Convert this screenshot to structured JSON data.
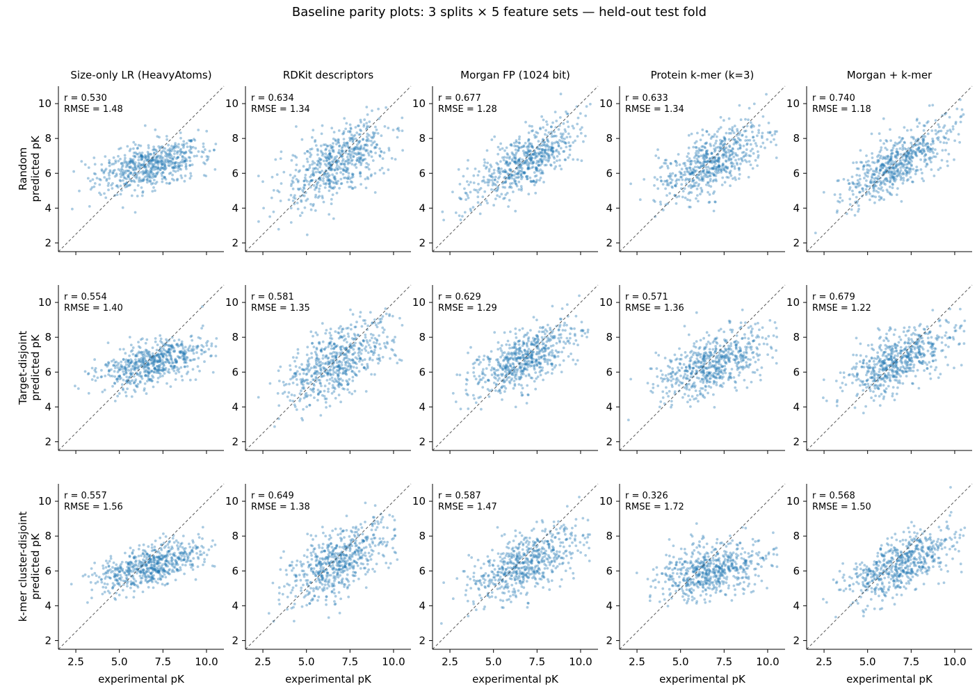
{
  "figure": {
    "title": "Baseline parity plots: 3 splits × 5 feature sets — held-out test fold"
  },
  "chart_data": {
    "type": "scatter",
    "layout": "grid",
    "rows": [
      "Random",
      "Target-disjoint",
      "k-mer cluster-disjoint"
    ],
    "columns": [
      "Size-only LR (HeavyAtoms)",
      "RDKit descriptors",
      "Morgan FP (1024 bit)",
      "Protein k-mer (k=3)",
      "Morgan + k-mer"
    ],
    "ylabel_suffix": "predicted pK",
    "xlabel": "experimental pK",
    "xlim": [
      1.5,
      11.0
    ],
    "ylim": [
      1.5,
      11.0
    ],
    "xticks": [
      2.5,
      5.0,
      7.5,
      10.0
    ],
    "yticks": [
      2,
      4,
      6,
      8,
      10
    ],
    "xtick_labels": [
      "2.5",
      "5.0",
      "7.5",
      "10.0"
    ],
    "ytick_labels": [
      "2",
      "4",
      "6",
      "8",
      "10"
    ],
    "identity_line": true,
    "marker_color": "#1f77b4",
    "line_color": "#555555",
    "points_per_panel": 600,
    "panels": [
      [
        {
          "r": "r = 0.530",
          "rmse": "RMSE = 1.48",
          "slope": 0.22,
          "intercept": 4.95,
          "noise": 0.62
        },
        {
          "r": "r = 0.634",
          "rmse": "RMSE = 1.34",
          "slope": 0.52,
          "intercept": 3.05,
          "noise": 0.95
        },
        {
          "r": "r = 0.677",
          "rmse": "RMSE = 1.28",
          "slope": 0.52,
          "intercept": 3.15,
          "noise": 0.82
        },
        {
          "r": "r = 0.633",
          "rmse": "RMSE = 1.34",
          "slope": 0.45,
          "intercept": 3.6,
          "noise": 0.85
        },
        {
          "r": "r = 0.740",
          "rmse": "RMSE = 1.18",
          "slope": 0.58,
          "intercept": 2.75,
          "noise": 0.78
        }
      ],
      [
        {
          "r": "r = 0.554",
          "rmse": "RMSE = 1.40",
          "slope": 0.24,
          "intercept": 4.85,
          "noise": 0.6
        },
        {
          "r": "r = 0.581",
          "rmse": "RMSE = 1.35",
          "slope": 0.48,
          "intercept": 3.3,
          "noise": 0.95
        },
        {
          "r": "r = 0.629",
          "rmse": "RMSE = 1.29",
          "slope": 0.42,
          "intercept": 3.95,
          "noise": 0.78
        },
        {
          "r": "r = 0.571",
          "rmse": "RMSE = 1.36",
          "slope": 0.38,
          "intercept": 3.95,
          "noise": 0.85
        },
        {
          "r": "r = 0.679",
          "rmse": "RMSE = 1.22",
          "slope": 0.42,
          "intercept": 3.8,
          "noise": 0.78
        }
      ],
      [
        {
          "r": "r = 0.557",
          "rmse": "RMSE = 1.56",
          "slope": 0.26,
          "intercept": 4.55,
          "noise": 0.58
        },
        {
          "r": "r = 0.649",
          "rmse": "RMSE = 1.38",
          "slope": 0.5,
          "intercept": 3.1,
          "noise": 0.88
        },
        {
          "r": "r = 0.587",
          "rmse": "RMSE = 1.47",
          "slope": 0.42,
          "intercept": 3.6,
          "noise": 0.85
        },
        {
          "r": "r = 0.326",
          "rmse": "RMSE = 1.72",
          "slope": 0.2,
          "intercept": 4.7,
          "noise": 0.75
        },
        {
          "r": "r = 0.568",
          "rmse": "RMSE = 1.50",
          "slope": 0.38,
          "intercept": 3.75,
          "noise": 0.78
        }
      ]
    ]
  }
}
